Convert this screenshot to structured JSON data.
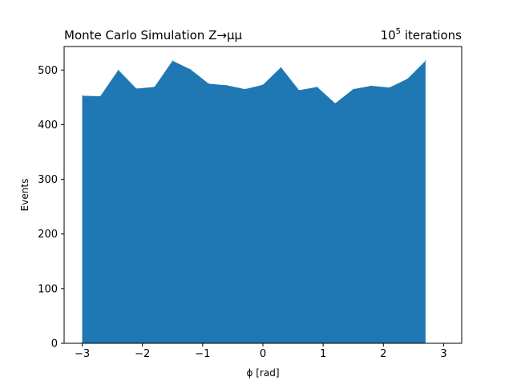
{
  "chart_data": {
    "type": "area",
    "title_left": "Monte Carlo Simulation Z→μμ",
    "title_right_base": "10",
    "title_right_exp": "5",
    "title_right_rest": " iterations",
    "xlabel": "ϕ [rad]",
    "ylabel": "Events",
    "xlim": [
      -3.3,
      3.3
    ],
    "ylim": [
      0,
      543
    ],
    "x_ticks": [
      -3,
      -2,
      -1,
      0,
      1,
      2,
      3
    ],
    "x_tick_labels": [
      "−3",
      "−2",
      "−1",
      "0",
      "1",
      "2",
      "3"
    ],
    "y_ticks": [
      0,
      100,
      200,
      300,
      400,
      500
    ],
    "y_tick_labels": [
      "0",
      "100",
      "200",
      "300",
      "400",
      "500"
    ],
    "grid": false,
    "color": "#1f77b4",
    "series": [
      {
        "x": [
          -3.0,
          -2.7,
          -2.4,
          -2.1,
          -1.8,
          -1.5,
          -1.2,
          -0.9,
          -0.6,
          -0.3,
          0.0,
          0.3,
          0.6,
          0.9,
          1.2,
          1.5,
          1.8,
          2.1,
          2.4,
          2.7
        ],
        "values": [
          453,
          452,
          500,
          466,
          469,
          517,
          501,
          475,
          472,
          465,
          473,
          505,
          463,
          469,
          439,
          465,
          471,
          468,
          484,
          517
        ]
      }
    ]
  }
}
